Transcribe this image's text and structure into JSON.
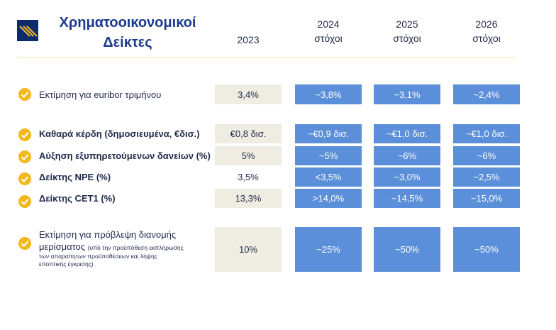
{
  "title": [
    "Χρηματοοικονομικοί",
    "Δείκτες"
  ],
  "columns": [
    {
      "year": "2023",
      "sub": ""
    },
    {
      "year": "2024",
      "sub": "στόχοι"
    },
    {
      "year": "2025",
      "sub": "στόχοι"
    },
    {
      "year": "2026",
      "sub": "στόχοι"
    }
  ],
  "rows": [
    {
      "label": "Εκτίμηση για euribor τριμήνου",
      "bold": false,
      "values": [
        "3,4%",
        "~3,8%",
        "~3,1%",
        "~2,4%"
      ]
    },
    {
      "label": "Καθαρά κέρδη (δημοσιευμένα, €δισ.)",
      "bold": true,
      "values": [
        "€0,8 δισ.",
        "~€0,9 δισ.",
        "~€1,0 δισ.",
        "~€1,0 δισ."
      ]
    },
    {
      "label": "Αύξηση εξυπηρετούμενων δανείων (%)",
      "bold": true,
      "values": [
        "5%",
        "~5%",
        "~6%",
        "~6%"
      ]
    },
    {
      "label": "Δείκτης NPE (%)",
      "bold": true,
      "values": [
        "3,5%",
        "<3,5%",
        "~3,0%",
        "~2,5%"
      ]
    },
    {
      "label": "Δείκτης CET1 (%)",
      "bold": true,
      "values": [
        "13,3%",
        ">14,0%",
        "~14,5%",
        "~15,0%"
      ]
    }
  ],
  "dividend": {
    "label_line1": "Εκτίμηση για πρόβλεψη διανομής",
    "label_line2": "μερίσματος",
    "note_1": "(υπό την προϋπόθεση εκπλήρωσης",
    "note_2": "των απαραίτητων προϋποθέσεων και λήψης",
    "note_3": "εποπτικής έγκρισης)",
    "values": [
      "10%",
      "~25%",
      "~50%",
      "~50%"
    ]
  },
  "colors": {
    "base_cell": "#efece2",
    "target_cell": "#5b8fd9",
    "check": "#f2b81e",
    "title": "#1b3a8f",
    "logo": "#0d2a6b"
  }
}
